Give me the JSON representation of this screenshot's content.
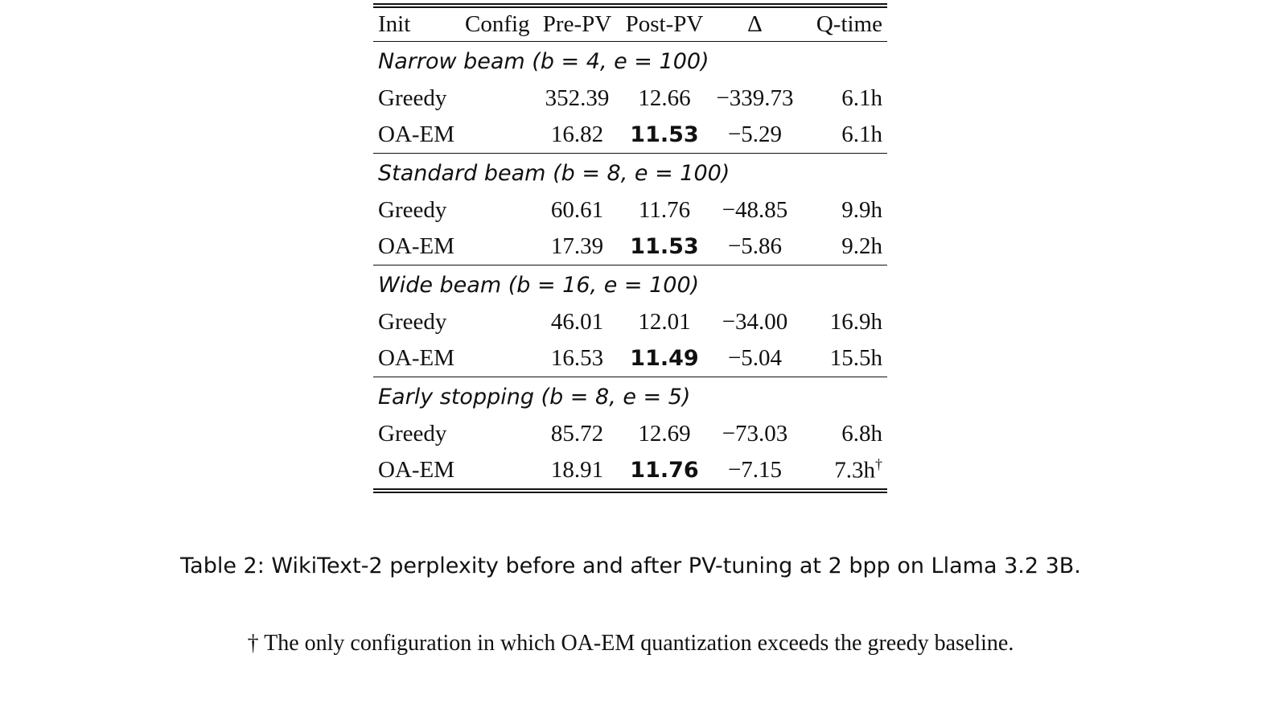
{
  "table": {
    "header": [
      "Init",
      "Config",
      "Pre-PV",
      "Post-PV",
      "Δ",
      "Q-time"
    ],
    "groups": [
      {
        "title": "Narrow beam (b = 4, e = 100)",
        "rows": [
          {
            "init": "Greedy",
            "pre": "352.39",
            "post": "12.66",
            "delta": "−339.73",
            "qtime": "6.1h"
          },
          {
            "init": "OA-EM",
            "pre": "16.82",
            "post": "11.53",
            "delta": "−5.29",
            "qtime": "6.1h"
          }
        ]
      },
      {
        "title": "Standard beam (b = 8, e = 100)",
        "rows": [
          {
            "init": "Greedy",
            "pre": "60.61",
            "post": "11.76",
            "delta": "−48.85",
            "qtime": "9.9h"
          },
          {
            "init": "OA-EM",
            "pre": "17.39",
            "post": "11.53",
            "delta": "−5.86",
            "qtime": "9.2h"
          }
        ]
      },
      {
        "title": "Wide beam (b = 16, e = 100)",
        "rows": [
          {
            "init": "Greedy",
            "pre": "46.01",
            "post": "12.01",
            "delta": "−34.00",
            "qtime": "16.9h"
          },
          {
            "init": "OA-EM",
            "pre": "16.53",
            "post": "11.49",
            "delta": "−5.04",
            "qtime": "15.5h"
          }
        ]
      },
      {
        "title": "Early stopping (b = 8, e = 5)",
        "rows": [
          {
            "init": "Greedy",
            "pre": "85.72",
            "post": "12.69",
            "delta": "−73.03",
            "qtime": "6.8h"
          },
          {
            "init": "OA-EM",
            "pre": "18.91",
            "post": "11.76",
            "delta": "−7.15",
            "qtime": "7.3h",
            "qtime_mark": "†"
          }
        ]
      }
    ]
  },
  "caption": "Table 2: WikiText-2 perplexity before and after PV-tuning at 2 bpp on Llama 3.2 3B.",
  "footnote": "† The only configuration in which OA-EM quantization exceeds the greedy baseline."
}
